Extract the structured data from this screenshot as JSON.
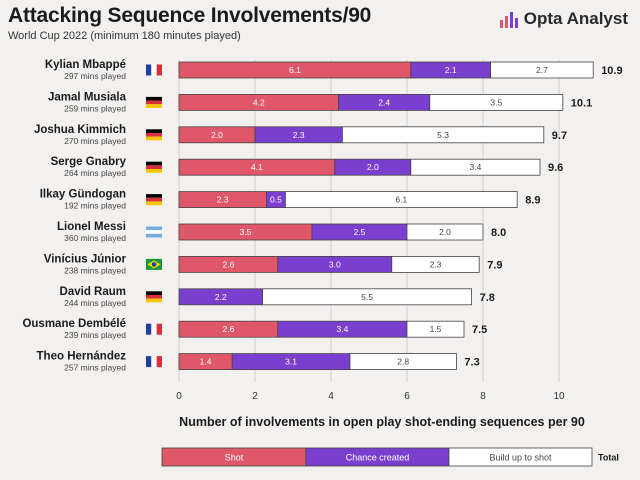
{
  "header": {
    "title": "Attacking Sequence Involvements/90",
    "subtitle": "World Cup 2022 (minimum 180 minutes played)",
    "brand": "Opta Analyst"
  },
  "colors": {
    "shot": "#e0576a",
    "chance": "#7b3fcf",
    "buildup": "#ffffff",
    "outline": "#444444",
    "background": "#f3f1ef",
    "grid": "#cfcfcf"
  },
  "chart_data": {
    "type": "bar",
    "orientation": "horizontal",
    "stacked": true,
    "title": "Attacking Sequence Involvements/90",
    "xlabel": "Number of involvements in open play shot-ending sequences per 90",
    "ylabel": "",
    "xlim": [
      0,
      10.9
    ],
    "xticks": [
      0,
      2,
      4,
      6,
      8,
      10
    ],
    "grid": true,
    "series_names": [
      "Shot",
      "Chance created",
      "Build up to shot"
    ],
    "total_label": "Total",
    "players": [
      {
        "name": "Kylian Mbappé",
        "mins": "297 mins played",
        "flag": "france",
        "shot": 6.1,
        "chance": 2.1,
        "buildup": 2.7,
        "total": 10.9
      },
      {
        "name": "Jamal Musiala",
        "mins": "259 mins played",
        "flag": "germany",
        "shot": 4.2,
        "chance": 2.4,
        "buildup": 3.5,
        "total": 10.1
      },
      {
        "name": "Joshua Kimmich",
        "mins": "270 mins played",
        "flag": "germany",
        "shot": 2.0,
        "chance": 2.3,
        "buildup": 5.3,
        "total": 9.7
      },
      {
        "name": "Serge Gnabry",
        "mins": "264 mins played",
        "flag": "germany",
        "shot": 4.1,
        "chance": 2.0,
        "buildup": 3.4,
        "total": 9.6
      },
      {
        "name": "Ilkay Gündogan",
        "mins": "192 mins played",
        "flag": "germany",
        "shot": 2.3,
        "chance": 0.5,
        "buildup": 6.1,
        "total": 8.9
      },
      {
        "name": "Lionel Messi",
        "mins": "360 mins played",
        "flag": "argentina",
        "shot": 3.5,
        "chance": 2.5,
        "buildup": 2.0,
        "total": 8.0
      },
      {
        "name": "Vinícius Júnior",
        "mins": "238 mins played",
        "flag": "brazil",
        "shot": 2.6,
        "chance": 3.0,
        "buildup": 2.3,
        "total": 7.9
      },
      {
        "name": "David Raum",
        "mins": "244 mins played",
        "flag": "germany",
        "shot": 0,
        "chance": 2.2,
        "buildup": 5.5,
        "total": 7.8
      },
      {
        "name": "Ousmane Dembélé",
        "mins": "239 mins played",
        "flag": "france",
        "shot": 2.6,
        "chance": 3.4,
        "buildup": 1.5,
        "total": 7.5
      },
      {
        "name": "Theo Hernández",
        "mins": "257 mins played",
        "flag": "france",
        "shot": 1.4,
        "chance": 3.1,
        "buildup": 2.8,
        "total": 7.3
      }
    ]
  }
}
